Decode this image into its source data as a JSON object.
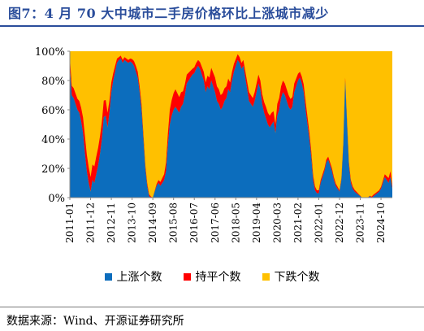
{
  "title": "图7：4 月 70 大中城市二手房价格环比上涨城市减少",
  "source": "数据来源：Wind、开源证券研究所",
  "colors": {
    "up": "#0c6dbd",
    "flat": "#ff0000",
    "down": "#ffc000",
    "title": "#2a4d9b"
  },
  "chart_data": {
    "type": "area",
    "stacked": true,
    "normalized": true,
    "title": "",
    "xlabel": "",
    "ylabel": "",
    "ylim": [
      0,
      100
    ],
    "yticks": [
      "0%",
      "20%",
      "40%",
      "60%",
      "80%",
      "100%"
    ],
    "x_tick_labels": [
      "2011-01",
      "2011-12",
      "2012-11",
      "2013-10",
      "2014-09",
      "2015-08",
      "2016-07",
      "2017-06",
      "2018-05",
      "2019-04",
      "2020-03",
      "2021-02",
      "2022-01",
      "2022-12",
      "2023-11",
      "2024-10"
    ],
    "x_start": "2011-01",
    "x_end": "2025-04",
    "legend": [
      "上涨个数",
      "持平个数",
      "下跌个数"
    ],
    "legend_position": "bottom",
    "grid": false,
    "series": [
      {
        "name": "上涨个数",
        "unit": "% of 70 cities",
        "keyframes": [
          [
            "2011-01",
            90
          ],
          [
            "2011-02",
            70
          ],
          [
            "2011-03",
            68
          ],
          [
            "2011-04",
            64
          ],
          [
            "2011-05",
            60
          ],
          [
            "2011-06",
            58
          ],
          [
            "2011-07",
            52
          ],
          [
            "2011-08",
            44
          ],
          [
            "2011-09",
            30
          ],
          [
            "2011-10",
            18
          ],
          [
            "2011-11",
            10
          ],
          [
            "2011-12",
            4
          ],
          [
            "2012-01",
            12
          ],
          [
            "2012-02",
            10
          ],
          [
            "2012-03",
            16
          ],
          [
            "2012-04",
            22
          ],
          [
            "2012-05",
            30
          ],
          [
            "2012-06",
            40
          ],
          [
            "2012-07",
            55
          ],
          [
            "2012-08",
            56
          ],
          [
            "2012-09",
            48
          ],
          [
            "2012-10",
            58
          ],
          [
            "2012-11",
            72
          ],
          [
            "2012-12",
            80
          ],
          [
            "2013-01",
            86
          ],
          [
            "2013-02",
            92
          ],
          [
            "2013-03",
            94
          ],
          [
            "2013-04",
            95
          ],
          [
            "2013-05",
            92
          ],
          [
            "2013-06",
            94
          ],
          [
            "2013-07",
            93
          ],
          [
            "2013-08",
            92
          ],
          [
            "2013-09",
            93
          ],
          [
            "2013-10",
            92
          ],
          [
            "2013-11",
            90
          ],
          [
            "2013-12",
            86
          ],
          [
            "2014-01",
            82
          ],
          [
            "2014-02",
            72
          ],
          [
            "2014-03",
            60
          ],
          [
            "2014-04",
            40
          ],
          [
            "2014-05",
            20
          ],
          [
            "2014-06",
            8
          ],
          [
            "2014-07",
            1
          ],
          [
            "2014-08",
            0
          ],
          [
            "2014-09",
            0
          ],
          [
            "2014-10",
            4
          ],
          [
            "2014-11",
            8
          ],
          [
            "2014-12",
            10
          ],
          [
            "2015-01",
            8
          ],
          [
            "2015-02",
            10
          ],
          [
            "2015-03",
            12
          ],
          [
            "2015-04",
            18
          ],
          [
            "2015-05",
            36
          ],
          [
            "2015-06",
            50
          ],
          [
            "2015-07",
            56
          ],
          [
            "2015-08",
            60
          ],
          [
            "2015-09",
            62
          ],
          [
            "2015-10",
            60
          ],
          [
            "2015-11",
            58
          ],
          [
            "2015-12",
            62
          ],
          [
            "2016-01",
            64
          ],
          [
            "2016-02",
            70
          ],
          [
            "2016-03",
            78
          ],
          [
            "2016-04",
            80
          ],
          [
            "2016-05",
            82
          ],
          [
            "2016-06",
            84
          ],
          [
            "2016-07",
            85
          ],
          [
            "2016-08",
            88
          ],
          [
            "2016-09",
            90
          ],
          [
            "2016-10",
            88
          ],
          [
            "2016-11",
            84
          ],
          [
            "2016-12",
            80
          ],
          [
            "2017-01",
            72
          ],
          [
            "2017-02",
            76
          ],
          [
            "2017-03",
            74
          ],
          [
            "2017-04",
            80
          ],
          [
            "2017-05",
            76
          ],
          [
            "2017-06",
            72
          ],
          [
            "2017-07",
            66
          ],
          [
            "2017-08",
            64
          ],
          [
            "2017-09",
            60
          ],
          [
            "2017-10",
            62
          ],
          [
            "2017-11",
            66
          ],
          [
            "2017-12",
            68
          ],
          [
            "2018-01",
            74
          ],
          [
            "2018-02",
            72
          ],
          [
            "2018-03",
            80
          ],
          [
            "2018-04",
            86
          ],
          [
            "2018-05",
            90
          ],
          [
            "2018-06",
            94
          ],
          [
            "2018-07",
            92
          ],
          [
            "2018-08",
            88
          ],
          [
            "2018-09",
            90
          ],
          [
            "2018-10",
            82
          ],
          [
            "2018-11",
            74
          ],
          [
            "2018-12",
            66
          ],
          [
            "2019-01",
            64
          ],
          [
            "2019-02",
            62
          ],
          [
            "2019-03",
            66
          ],
          [
            "2019-04",
            72
          ],
          [
            "2019-05",
            78
          ],
          [
            "2019-06",
            74
          ],
          [
            "2019-07",
            64
          ],
          [
            "2019-08",
            58
          ],
          [
            "2019-09",
            54
          ],
          [
            "2019-10",
            50
          ],
          [
            "2019-11",
            48
          ],
          [
            "2019-12",
            50
          ],
          [
            "2020-01",
            52
          ],
          [
            "2020-02",
            44
          ],
          [
            "2020-03",
            56
          ],
          [
            "2020-04",
            60
          ],
          [
            "2020-05",
            68
          ],
          [
            "2020-06",
            72
          ],
          [
            "2020-07",
            70
          ],
          [
            "2020-08",
            66
          ],
          [
            "2020-09",
            62
          ],
          [
            "2020-10",
            60
          ],
          [
            "2020-11",
            62
          ],
          [
            "2020-12",
            72
          ],
          [
            "2021-01",
            76
          ],
          [
            "2021-02",
            80
          ],
          [
            "2021-03",
            82
          ],
          [
            "2021-04",
            78
          ],
          [
            "2021-05",
            72
          ],
          [
            "2021-06",
            60
          ],
          [
            "2021-07",
            50
          ],
          [
            "2021-08",
            40
          ],
          [
            "2021-09",
            28
          ],
          [
            "2021-10",
            12
          ],
          [
            "2021-11",
            5
          ],
          [
            "2021-12",
            3
          ],
          [
            "2022-01",
            3
          ],
          [
            "2022-02",
            10
          ],
          [
            "2022-03",
            14
          ],
          [
            "2022-04",
            18
          ],
          [
            "2022-05",
            24
          ],
          [
            "2022-06",
            26
          ],
          [
            "2022-07",
            22
          ],
          [
            "2022-08",
            18
          ],
          [
            "2022-09",
            12
          ],
          [
            "2022-10",
            8
          ],
          [
            "2022-11",
            6
          ],
          [
            "2022-12",
            4
          ],
          [
            "2023-01",
            12
          ],
          [
            "2023-02",
            36
          ],
          [
            "2023-03",
            80
          ],
          [
            "2023-04",
            50
          ],
          [
            "2023-05",
            22
          ],
          [
            "2023-06",
            10
          ],
          [
            "2023-07",
            6
          ],
          [
            "2023-08",
            4
          ],
          [
            "2023-09",
            3
          ],
          [
            "2023-10",
            2
          ],
          [
            "2023-11",
            1
          ],
          [
            "2023-12",
            0
          ],
          [
            "2024-01",
            0
          ],
          [
            "2024-02",
            0
          ],
          [
            "2024-03",
            0
          ],
          [
            "2024-04",
            1
          ],
          [
            "2024-05",
            0
          ],
          [
            "2024-06",
            1
          ],
          [
            "2024-07",
            2
          ],
          [
            "2024-08",
            3
          ],
          [
            "2024-09",
            4
          ],
          [
            "2024-10",
            6
          ],
          [
            "2024-11",
            10
          ],
          [
            "2024-12",
            14
          ],
          [
            "2025-01",
            12
          ],
          [
            "2025-02",
            10
          ],
          [
            "2025-03",
            14
          ],
          [
            "2025-04",
            6
          ]
        ]
      },
      {
        "name": "持平个数",
        "unit": "% of 70 cities",
        "keyframes": [
          [
            "2011-01",
            6
          ],
          [
            "2011-06",
            8
          ],
          [
            "2011-09",
            12
          ],
          [
            "2011-12",
            10
          ],
          [
            "2012-03",
            12
          ],
          [
            "2012-06",
            12
          ],
          [
            "2012-09",
            10
          ],
          [
            "2012-12",
            5
          ],
          [
            "2013-03",
            2
          ],
          [
            "2013-06",
            2
          ],
          [
            "2013-09",
            2
          ],
          [
            "2013-12",
            4
          ],
          [
            "2014-03",
            4
          ],
          [
            "2014-06",
            2
          ],
          [
            "2014-09",
            0
          ],
          [
            "2014-12",
            2
          ],
          [
            "2015-03",
            4
          ],
          [
            "2015-06",
            10
          ],
          [
            "2015-09",
            12
          ],
          [
            "2015-12",
            10
          ],
          [
            "2016-03",
            6
          ],
          [
            "2016-06",
            4
          ],
          [
            "2016-09",
            4
          ],
          [
            "2016-12",
            6
          ],
          [
            "2017-03",
            8
          ],
          [
            "2017-06",
            10
          ],
          [
            "2017-09",
            10
          ],
          [
            "2017-12",
            8
          ],
          [
            "2018-03",
            6
          ],
          [
            "2018-06",
            4
          ],
          [
            "2018-09",
            4
          ],
          [
            "2018-12",
            6
          ],
          [
            "2019-03",
            6
          ],
          [
            "2019-06",
            6
          ],
          [
            "2019-09",
            8
          ],
          [
            "2019-12",
            8
          ],
          [
            "2020-02",
            6
          ],
          [
            "2020-03",
            8
          ],
          [
            "2020-06",
            8
          ],
          [
            "2020-09",
            8
          ],
          [
            "2020-12",
            6
          ],
          [
            "2021-03",
            4
          ],
          [
            "2021-06",
            6
          ],
          [
            "2021-09",
            4
          ],
          [
            "2021-12",
            2
          ],
          [
            "2022-03",
            2
          ],
          [
            "2022-06",
            2
          ],
          [
            "2022-09",
            2
          ],
          [
            "2022-12",
            1
          ],
          [
            "2023-03",
            2
          ],
          [
            "2023-06",
            2
          ],
          [
            "2023-09",
            1
          ],
          [
            "2023-12",
            0
          ],
          [
            "2024-03",
            0
          ],
          [
            "2024-06",
            1
          ],
          [
            "2024-09",
            1
          ],
          [
            "2024-12",
            2
          ],
          [
            "2025-03",
            4
          ],
          [
            "2025-04",
            2
          ]
        ]
      },
      {
        "name": "下跌个数",
        "unit": "% of 70 cities",
        "note": "remainder to 100%"
      }
    ]
  }
}
